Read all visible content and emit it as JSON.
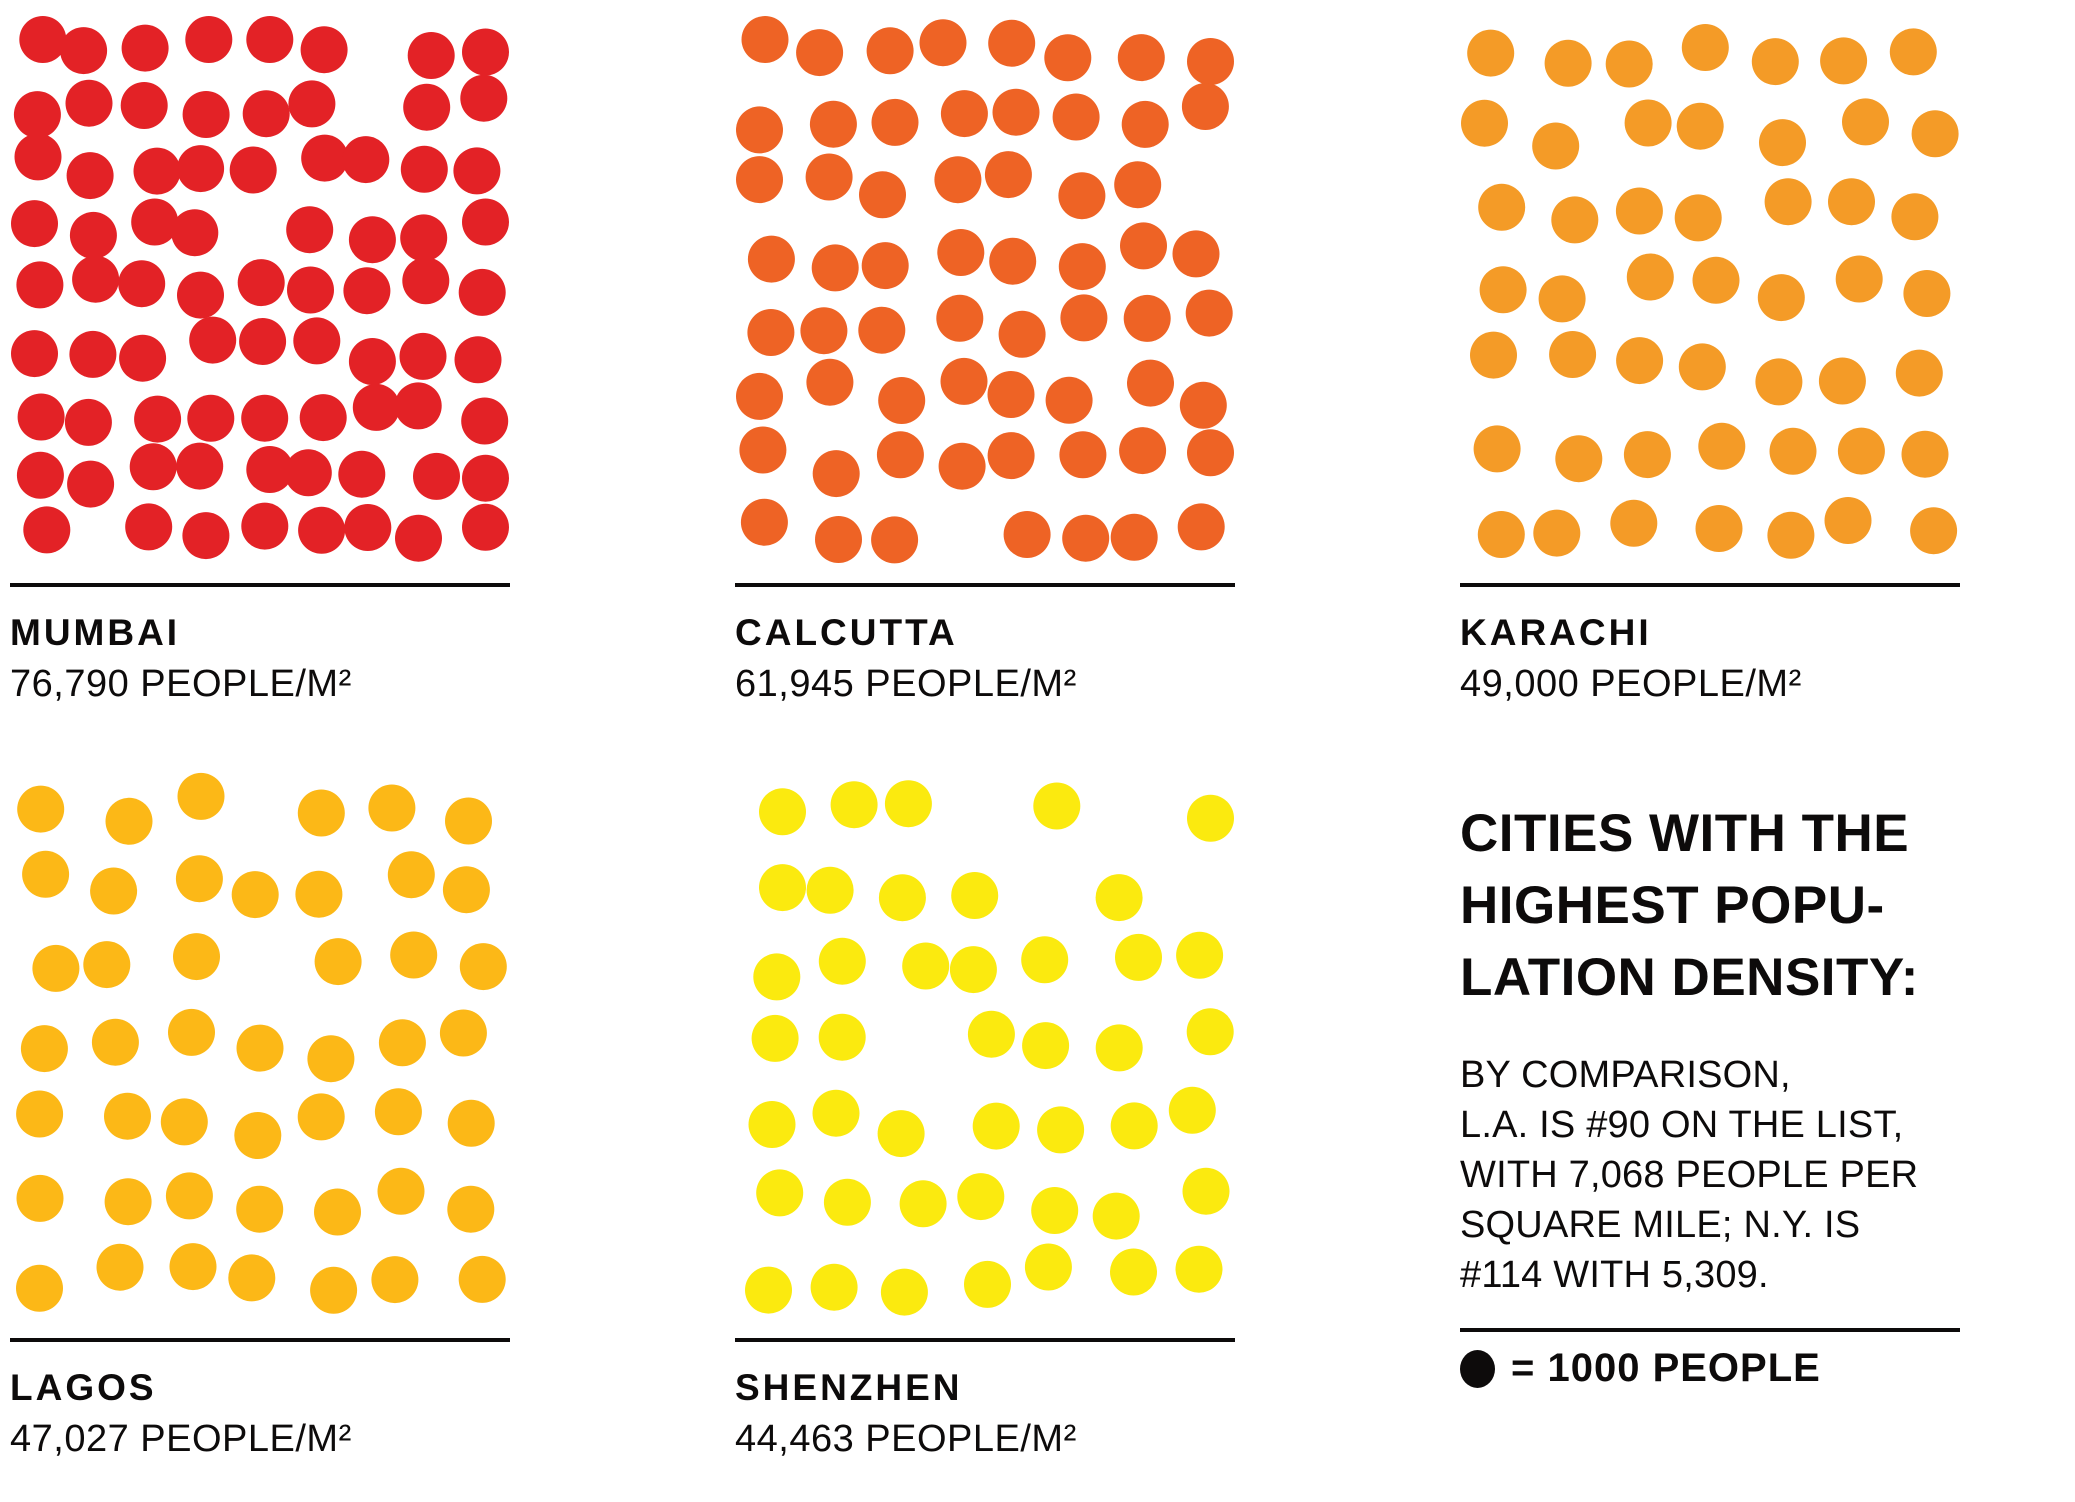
{
  "page": {
    "background": "#FFFFFF"
  },
  "chart_data": {
    "type": "pictogram",
    "title_lines": [
      "CITIES WITH THE",
      "HIGHEST POPU-",
      "LATION DENSITY:"
    ],
    "note_lines": [
      "BY COMPARISON,",
      "L.A. IS #90 ON THE LIST,",
      "WITH 7,068 PEOPLE PER",
      "SQUARE MILE; N.Y. IS",
      "#114 WITH 5,309."
    ],
    "legend": {
      "symbol": "black-dot",
      "label": "= 1000 PEOPLE",
      "unit_per_dot": 1000,
      "color": "#0D0B0B"
    },
    "layout_hint": "5 dot-matrix panels, 1 dot = 1000 people per square mile",
    "cities": [
      {
        "name": "MUMBAI",
        "density_label": "76,790 PEOPLE/M²",
        "density_per_sq_mile": 76790,
        "dots": 77,
        "color": "#E32226",
        "grid_cols": 9,
        "grid_rows": 9
      },
      {
        "name": "CALCUTTA",
        "density_label": "61,945 PEOPLE/M²",
        "density_per_sq_mile": 61945,
        "dots": 62,
        "color": "#EE6325",
        "grid_cols": 8,
        "grid_rows": 8
      },
      {
        "name": "KARACHI",
        "density_label": "49,000 PEOPLE/M²",
        "density_per_sq_mile": 49000,
        "dots": 49,
        "color": "#F49B27",
        "grid_cols": 7,
        "grid_rows": 7
      },
      {
        "name": "LAGOS",
        "density_label": "47,027 PEOPLE/M²",
        "density_per_sq_mile": 47027,
        "dots": 47,
        "color": "#FCB817",
        "grid_cols": 7,
        "grid_rows": 7
      },
      {
        "name": "SHENZHEN",
        "density_label": "44,463 PEOPLE/M²",
        "density_per_sq_mile": 44463,
        "dots": 44,
        "color": "#FBEA0F",
        "grid_cols": 7,
        "grid_rows": 7
      }
    ]
  }
}
